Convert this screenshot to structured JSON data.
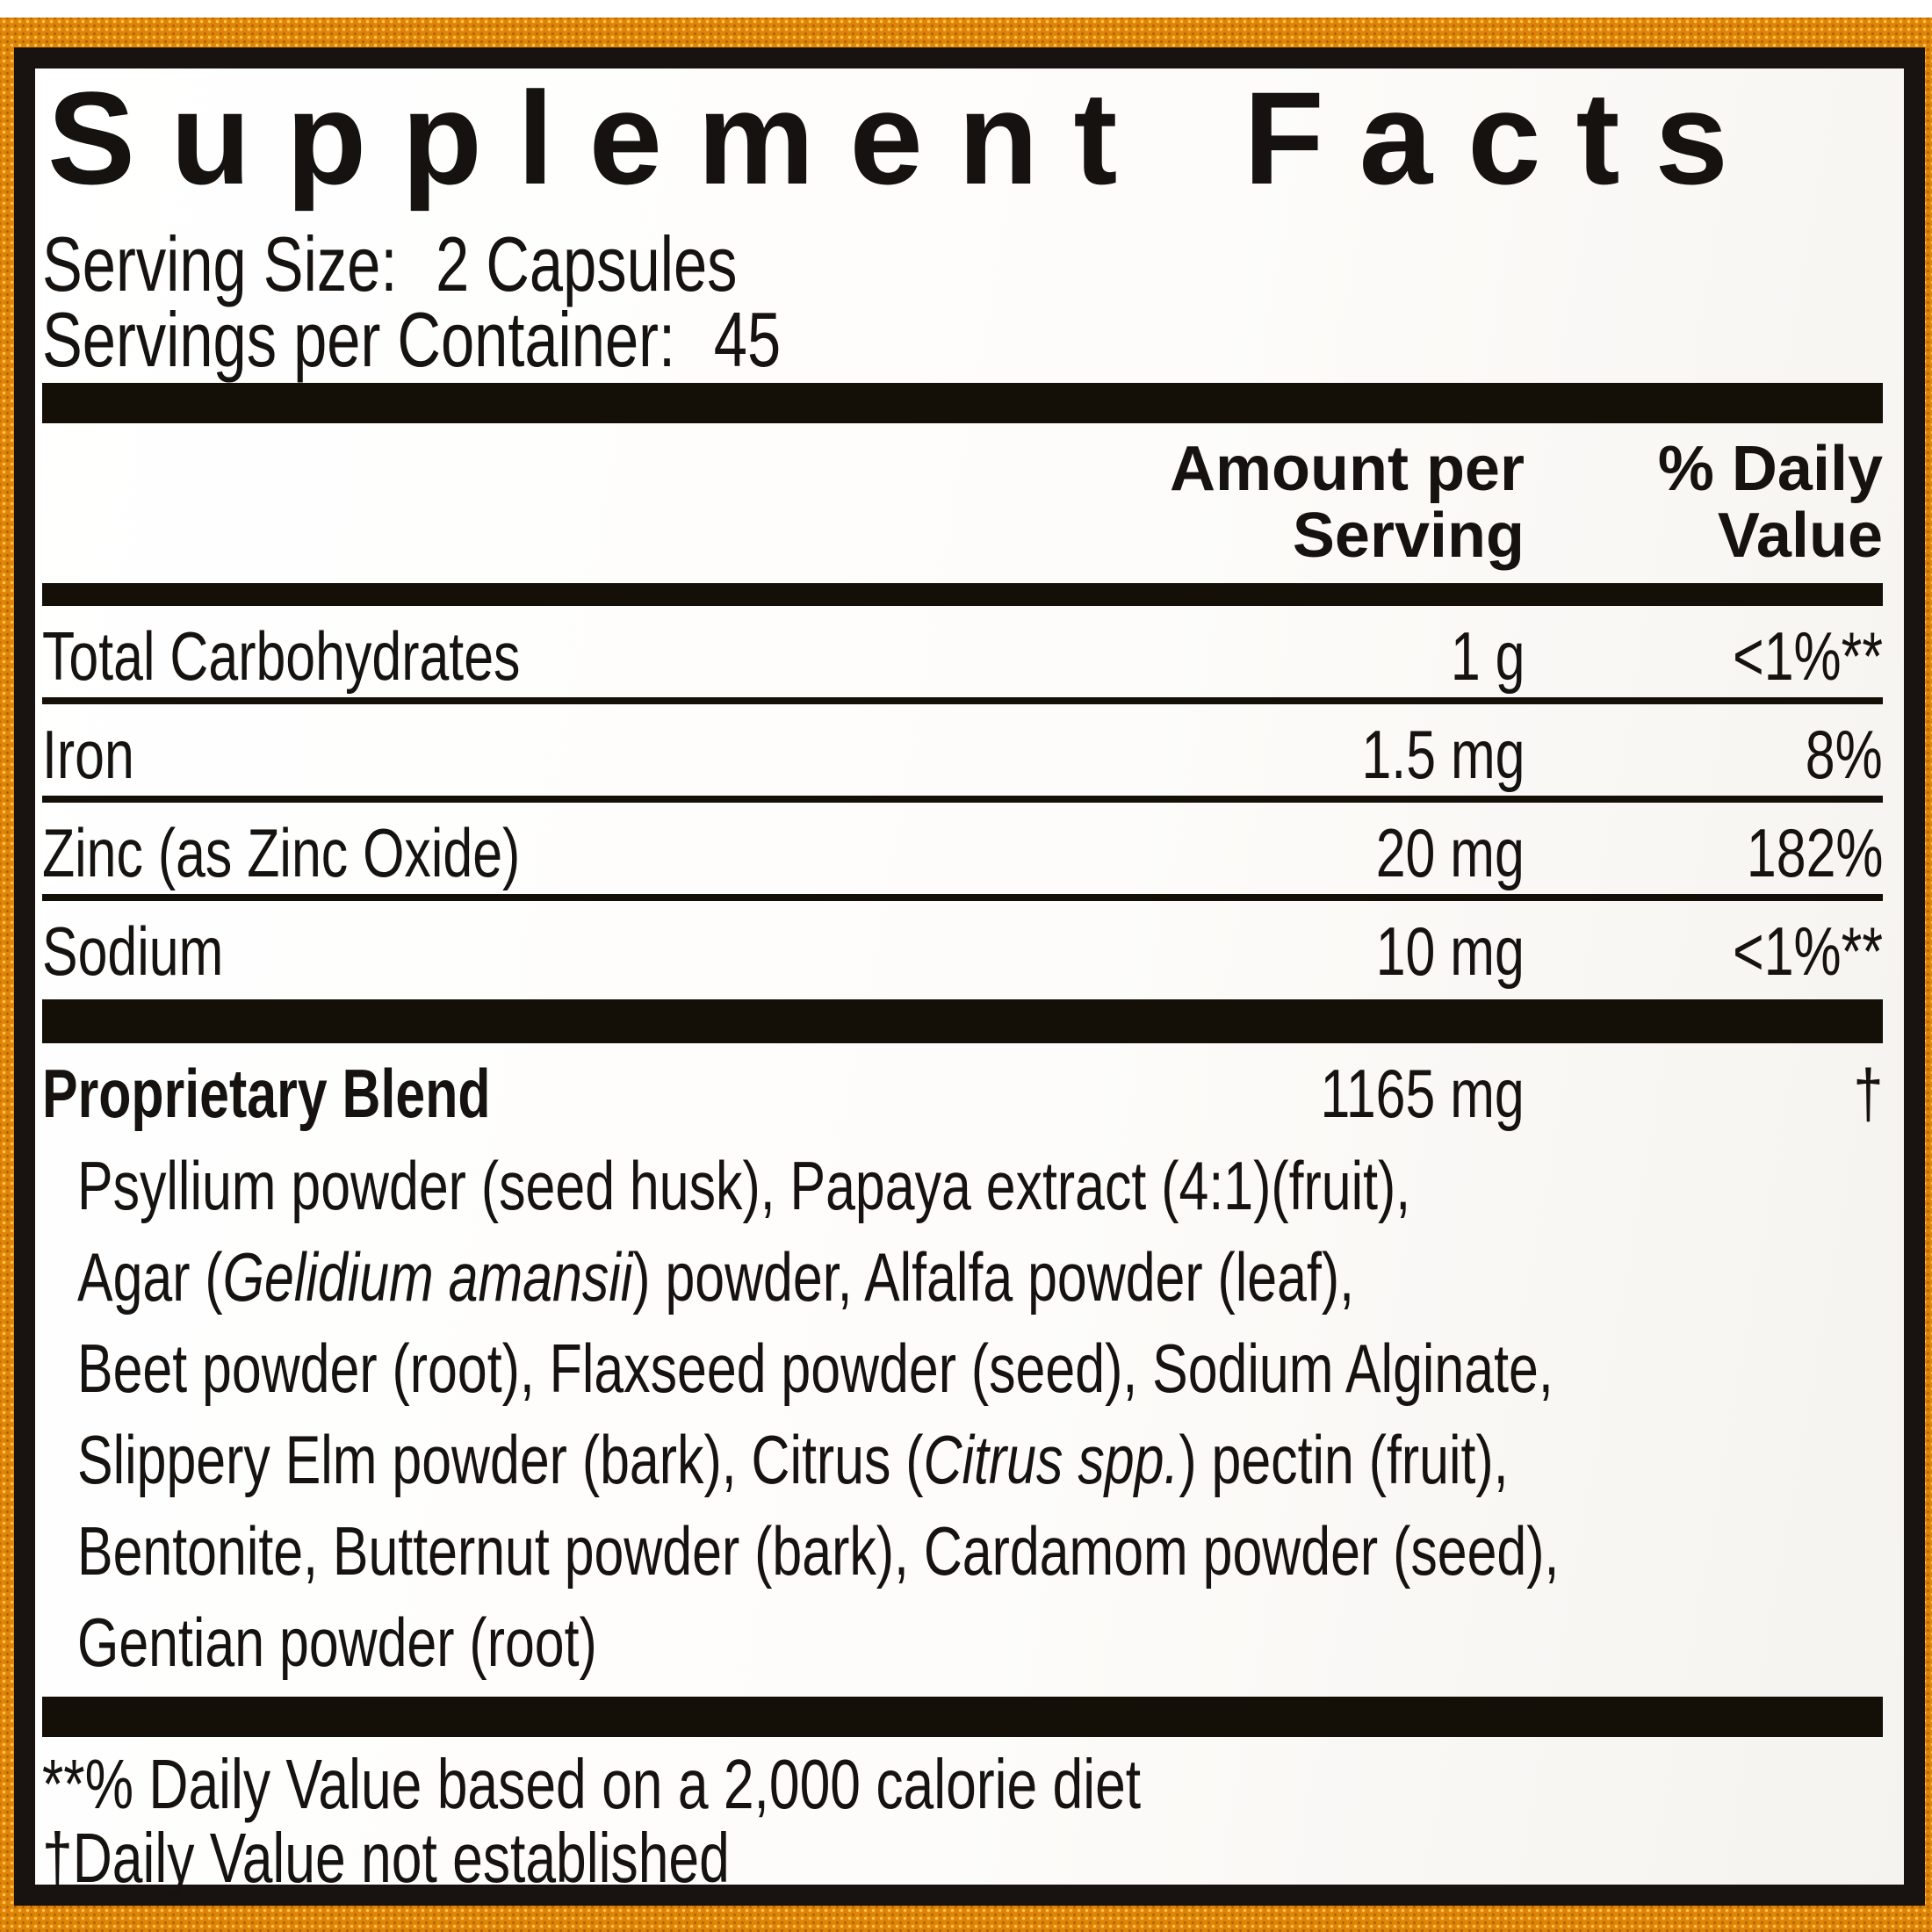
{
  "label": {
    "title": "Supplement Facts",
    "serving": {
      "size_label": "Serving Size:",
      "size_value": "2 Capsules",
      "count_label": "Servings per Container:",
      "count_value": "45"
    },
    "headers": {
      "amount_line1": "Amount per",
      "amount_line2": "Serving",
      "dv_line1": "% Daily",
      "dv_line2": "Value"
    },
    "rows": [
      {
        "name": "Total Carbohydrates",
        "amount": "1 g",
        "dv": "<1%**"
      },
      {
        "name": "Iron",
        "amount": "1.5 mg",
        "dv": "8%"
      },
      {
        "name": "Zinc (as Zinc Oxide)",
        "amount": "20 mg",
        "dv": "182%"
      },
      {
        "name": "Sodium",
        "amount": "10 mg",
        "dv": "<1%**"
      }
    ],
    "blend": {
      "name": "Proprietary Blend",
      "amount": "1165 mg",
      "dv": "†",
      "ingredient_lines": [
        [
          {
            "t": "Psyllium powder (seed husk), Papaya extract (4:1)(fruit),",
            "i": false
          }
        ],
        [
          {
            "t": "Agar (",
            "i": false
          },
          {
            "t": "Gelidium amansii",
            "i": true
          },
          {
            "t": ") powder, Alfalfa powder (leaf),",
            "i": false
          }
        ],
        [
          {
            "t": "Beet powder (root), Flaxseed powder (seed), Sodium Alginate,",
            "i": false
          }
        ],
        [
          {
            "t": "Slippery Elm powder (bark), Citrus (",
            "i": false
          },
          {
            "t": "Citrus spp.",
            "i": true
          },
          {
            "t": ") pectin (fruit),",
            "i": false
          }
        ],
        [
          {
            "t": "Bentonite, Butternut powder (bark), Cardamom powder (seed),",
            "i": false
          }
        ],
        [
          {
            "t": "Gentian powder (root)",
            "i": false
          }
        ]
      ]
    },
    "footnotes": [
      "**% Daily Value based on a 2,000 calorie diet",
      "†Daily Value not established"
    ],
    "colors": {
      "accent_orange": "#de8406",
      "orange_dot_light": "#ffc14f",
      "frame_black": "#181210",
      "text_black": "#15120f"
    }
  }
}
